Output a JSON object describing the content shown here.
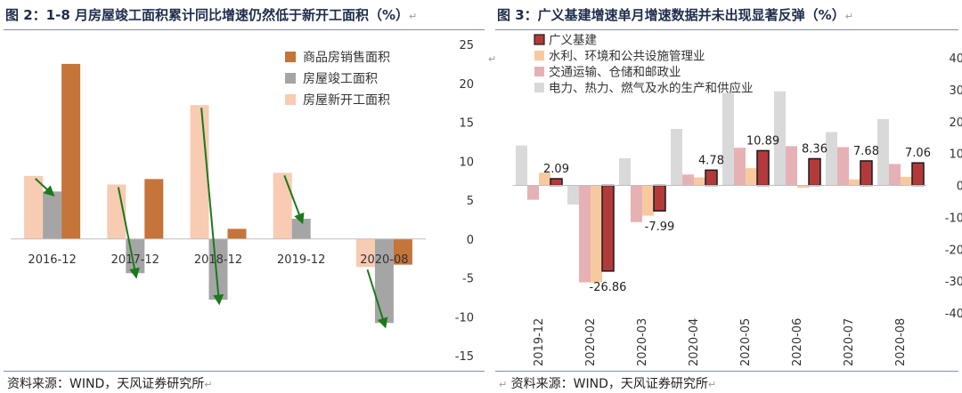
{
  "left": {
    "title": "图 2：1-8 月房屋竣工面积累计同比增速仍然低于新开工面积（%）",
    "source": "资料来源：WIND，天风证券研究所",
    "chart_data": {
      "type": "bar",
      "categories": [
        "2016-12",
        "2017-12",
        "2018-12",
        "2019-12",
        "2020-08"
      ],
      "series": [
        {
          "name": "房屋新开工面积",
          "color": "#f8cbb3",
          "values": [
            8.1,
            7.0,
            17.2,
            8.5,
            -3.6
          ]
        },
        {
          "name": "房屋竣工面积",
          "color": "#a5a5a5",
          "values": [
            6.1,
            -4.4,
            -7.8,
            2.6,
            -10.8
          ]
        },
        {
          "name": "商品房销售面积",
          "color": "#c5743a",
          "values": [
            22.5,
            7.7,
            1.3,
            0.0,
            -3.3
          ]
        }
      ],
      "legend_order": [
        "商品房销售面积",
        "房屋竣工面积",
        "房屋新开工面积"
      ],
      "legend_position": "top-right",
      "yaxis_side": "right",
      "ylim": [
        -15,
        25
      ],
      "yticks": [
        -15,
        -10,
        -5,
        0,
        5,
        10,
        15,
        20,
        25
      ],
      "arrow_color": "#1a7a1a",
      "arrows": [
        {
          "category": "2016-12",
          "from": 8.1,
          "to": 6.1
        },
        {
          "category": "2017-12",
          "from": 7.0,
          "to": -4.4
        },
        {
          "category": "2018-12",
          "from": 17.2,
          "to": -7.8
        },
        {
          "category": "2019-12",
          "from": 8.5,
          "to": 2.6
        },
        {
          "category": "2020-08",
          "from": -3.6,
          "to": -10.8
        }
      ],
      "grid": false
    }
  },
  "right": {
    "title": "图 3：广义基建增速单月增速数据并未出现显著反弹（%）",
    "source": "资料来源：WIND，天风证券研究所",
    "chart_data": {
      "type": "bar",
      "categories": [
        "2019-12",
        "2020-02",
        "2020-03",
        "2020-04",
        "2020-05",
        "2020-06",
        "2020-07",
        "2020-08"
      ],
      "series": [
        {
          "name": "电力、热力、燃气及水的生产和供应业",
          "color": "#d9d9d9",
          "values": [
            12.5,
            -6.0,
            8.5,
            17.7,
            29.0,
            29.5,
            16.7,
            20.8
          ]
        },
        {
          "name": "交通运输、仓储和邮政业",
          "color": "#e6b1b5",
          "values": [
            -4.5,
            -30.4,
            -11.5,
            3.4,
            11.8,
            12.3,
            12.0,
            6.7
          ]
        },
        {
          "name": "水利、环境和公共设施管理业",
          "color": "#f8c99e",
          "values": [
            4.0,
            -30.4,
            -9.5,
            2.5,
            5.4,
            -0.8,
            1.9,
            2.7
          ]
        },
        {
          "name": "广义基建",
          "color": "#b33a3a",
          "values": [
            2.09,
            -26.86,
            -7.99,
            4.78,
            10.89,
            8.36,
            7.68,
            7.06
          ]
        }
      ],
      "legend_order": [
        "广义基建",
        "水利、环境和公共设施管理业",
        "交通运输、仓储和邮政业",
        "电力、热力、燃气及水的生产和供应业"
      ],
      "legend_position": "top-left",
      "data_labels": [
        "2.09",
        "-26.86",
        "-7.99",
        "4.78",
        "10.89",
        "8.36",
        "7.68",
        "7.06"
      ],
      "yaxis_side": "right",
      "ylim": [
        -40,
        40
      ],
      "yticks": [
        -40,
        -30,
        -20,
        -10,
        0,
        10,
        20,
        30,
        40
      ],
      "grid": false
    }
  }
}
